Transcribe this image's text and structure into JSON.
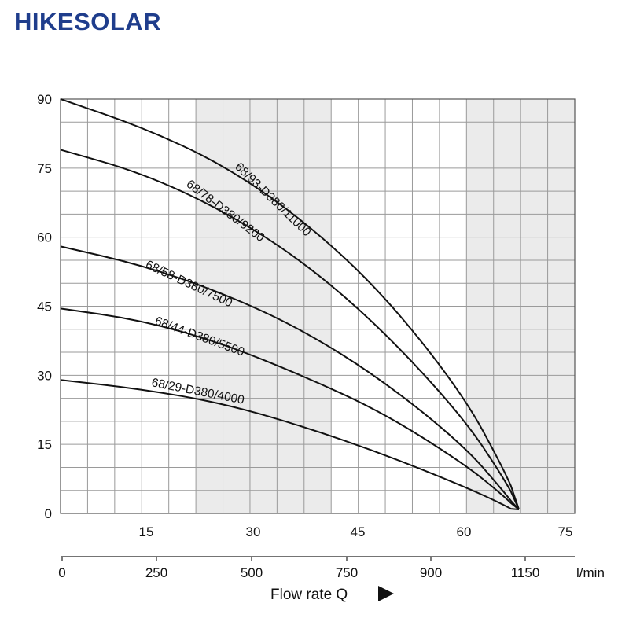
{
  "brand": {
    "name": "HIKESOLAR",
    "color": "#1f3d8c"
  },
  "chart_data": {
    "type": "line",
    "title": "",
    "ylabel": "",
    "xlabel": "Flow rate Q",
    "x_unit": "l/min",
    "ylim": [
      0,
      90
    ],
    "yticks": [
      "0",
      "15",
      "30",
      "45",
      "60",
      "75",
      "90"
    ],
    "x_m3h_ticks": [
      "15",
      "30",
      "45",
      "60",
      "75"
    ],
    "x_lmin_ticks": [
      "0",
      "250",
      "500",
      "750",
      "900",
      "1150"
    ],
    "grid": true,
    "shaded_bands_color": "#ebebeb",
    "series": [
      {
        "name": "68/93-D380/11000",
        "flow_lmin": [
          0,
          200,
          400,
          600,
          800,
          1000,
          1100,
          1140
        ],
        "head": [
          90,
          84,
          76,
          64,
          48,
          26,
          10,
          2
        ]
      },
      {
        "name": "68/78-D380/9200",
        "flow_lmin": [
          0,
          200,
          400,
          600,
          800,
          1000,
          1100,
          1140
        ],
        "head": [
          79,
          74,
          66,
          55,
          40,
          21,
          8,
          1.5
        ]
      },
      {
        "name": "68/58-D380/7500",
        "flow_lmin": [
          0,
          200,
          400,
          600,
          800,
          1000,
          1100,
          1140
        ],
        "head": [
          58,
          54,
          48,
          40,
          29,
          15,
          5,
          0.5
        ]
      },
      {
        "name": "68/44-D380/5500",
        "flow_lmin": [
          0,
          200,
          400,
          600,
          800,
          1000,
          1100,
          1140
        ],
        "head": [
          44.5,
          42,
          37,
          30,
          22,
          11,
          4,
          0.5
        ]
      },
      {
        "name": "68/29-D380/4000",
        "flow_lmin": [
          0,
          200,
          400,
          600,
          800,
          1000,
          1100,
          1140
        ],
        "head": [
          29,
          27,
          24,
          19,
          13,
          6,
          2,
          0
        ]
      }
    ]
  }
}
